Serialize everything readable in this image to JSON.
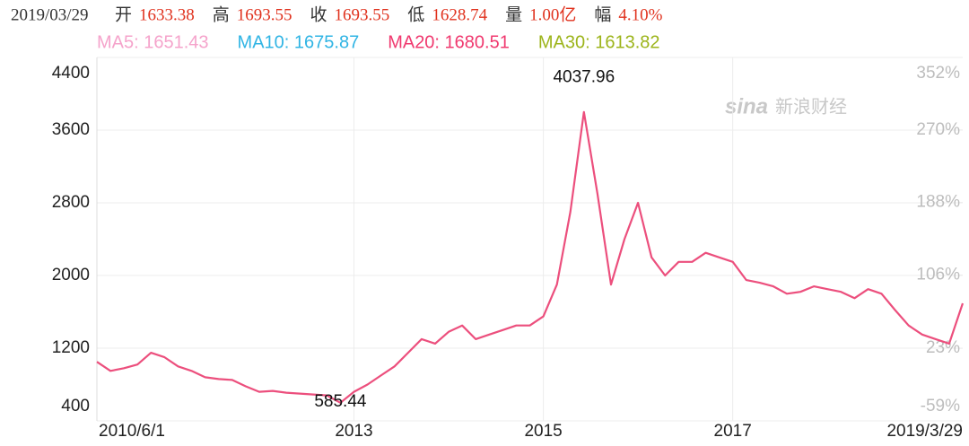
{
  "header": {
    "date": "2019/03/29",
    "fields": [
      {
        "label": "开",
        "value": "1633.38"
      },
      {
        "label": "高",
        "value": "1693.55"
      },
      {
        "label": "收",
        "value": "1693.55"
      },
      {
        "label": "低",
        "value": "1628.74"
      },
      {
        "label": "量",
        "value": "1.00亿"
      },
      {
        "label": "幅",
        "value": "4.10%"
      }
    ],
    "ma": [
      {
        "text": "MA5: 1651.43",
        "color": "#f5a3cb"
      },
      {
        "text": "MA10: 1675.87",
        "color": "#2fb4e4"
      },
      {
        "text": "MA20: 1680.51",
        "color": "#f0396f"
      },
      {
        "text": "MA30: 1613.82",
        "color": "#9cb41a"
      }
    ]
  },
  "watermark": {
    "logo": "sina",
    "text": "新浪财经"
  },
  "chart_data": {
    "type": "line",
    "categories": [
      "2010/6/1",
      null,
      null,
      null,
      null,
      null,
      null,
      null,
      null,
      null,
      null,
      null,
      null,
      null,
      null,
      null,
      null,
      null,
      null,
      "2013",
      null,
      null,
      null,
      null,
      null,
      null,
      null,
      null,
      null,
      null,
      null,
      null,
      null,
      "2015",
      null,
      null,
      null,
      null,
      null,
      null,
      null,
      null,
      null,
      null,
      null,
      null,
      null,
      "2017",
      null,
      null,
      null,
      null,
      null,
      null,
      null,
      null,
      null,
      null,
      null,
      null,
      null,
      null,
      null,
      null,
      "2019/3/29"
    ],
    "values": [
      1050,
      950,
      980,
      1020,
      1150,
      1100,
      1000,
      950,
      880,
      860,
      850,
      780,
      720,
      730,
      710,
      700,
      690,
      680,
      600,
      720,
      800,
      900,
      1000,
      1150,
      1300,
      1250,
      1380,
      1450,
      1300,
      1350,
      1400,
      1450,
      1450,
      1550,
      1900,
      2700,
      3800,
      2900,
      1900,
      2400,
      2800,
      2200,
      2000,
      2150,
      2150,
      2250,
      2200,
      2150,
      1950,
      1920,
      1880,
      1800,
      1820,
      1880,
      1850,
      1820,
      1750,
      1850,
      1800,
      1620,
      1450,
      1350,
      1300,
      1250,
      1693.55
    ],
    "color": "#ec4f7d",
    "peak_label": 4037.96,
    "low_label": 585.44,
    "ylim": [
      400,
      4400
    ],
    "yticks": [
      400,
      1200,
      2000,
      2800,
      3600,
      4400
    ],
    "y2lim": [
      -59,
      352
    ],
    "y2ticks": [
      {
        "value": -59,
        "label": "-59%"
      },
      {
        "value": 23,
        "label": "23%"
      },
      {
        "value": 106,
        "label": "106%"
      },
      {
        "value": 188,
        "label": "188%"
      },
      {
        "value": 270,
        "label": "270%"
      },
      {
        "value": 352,
        "label": "352%"
      }
    ],
    "grid": true
  }
}
